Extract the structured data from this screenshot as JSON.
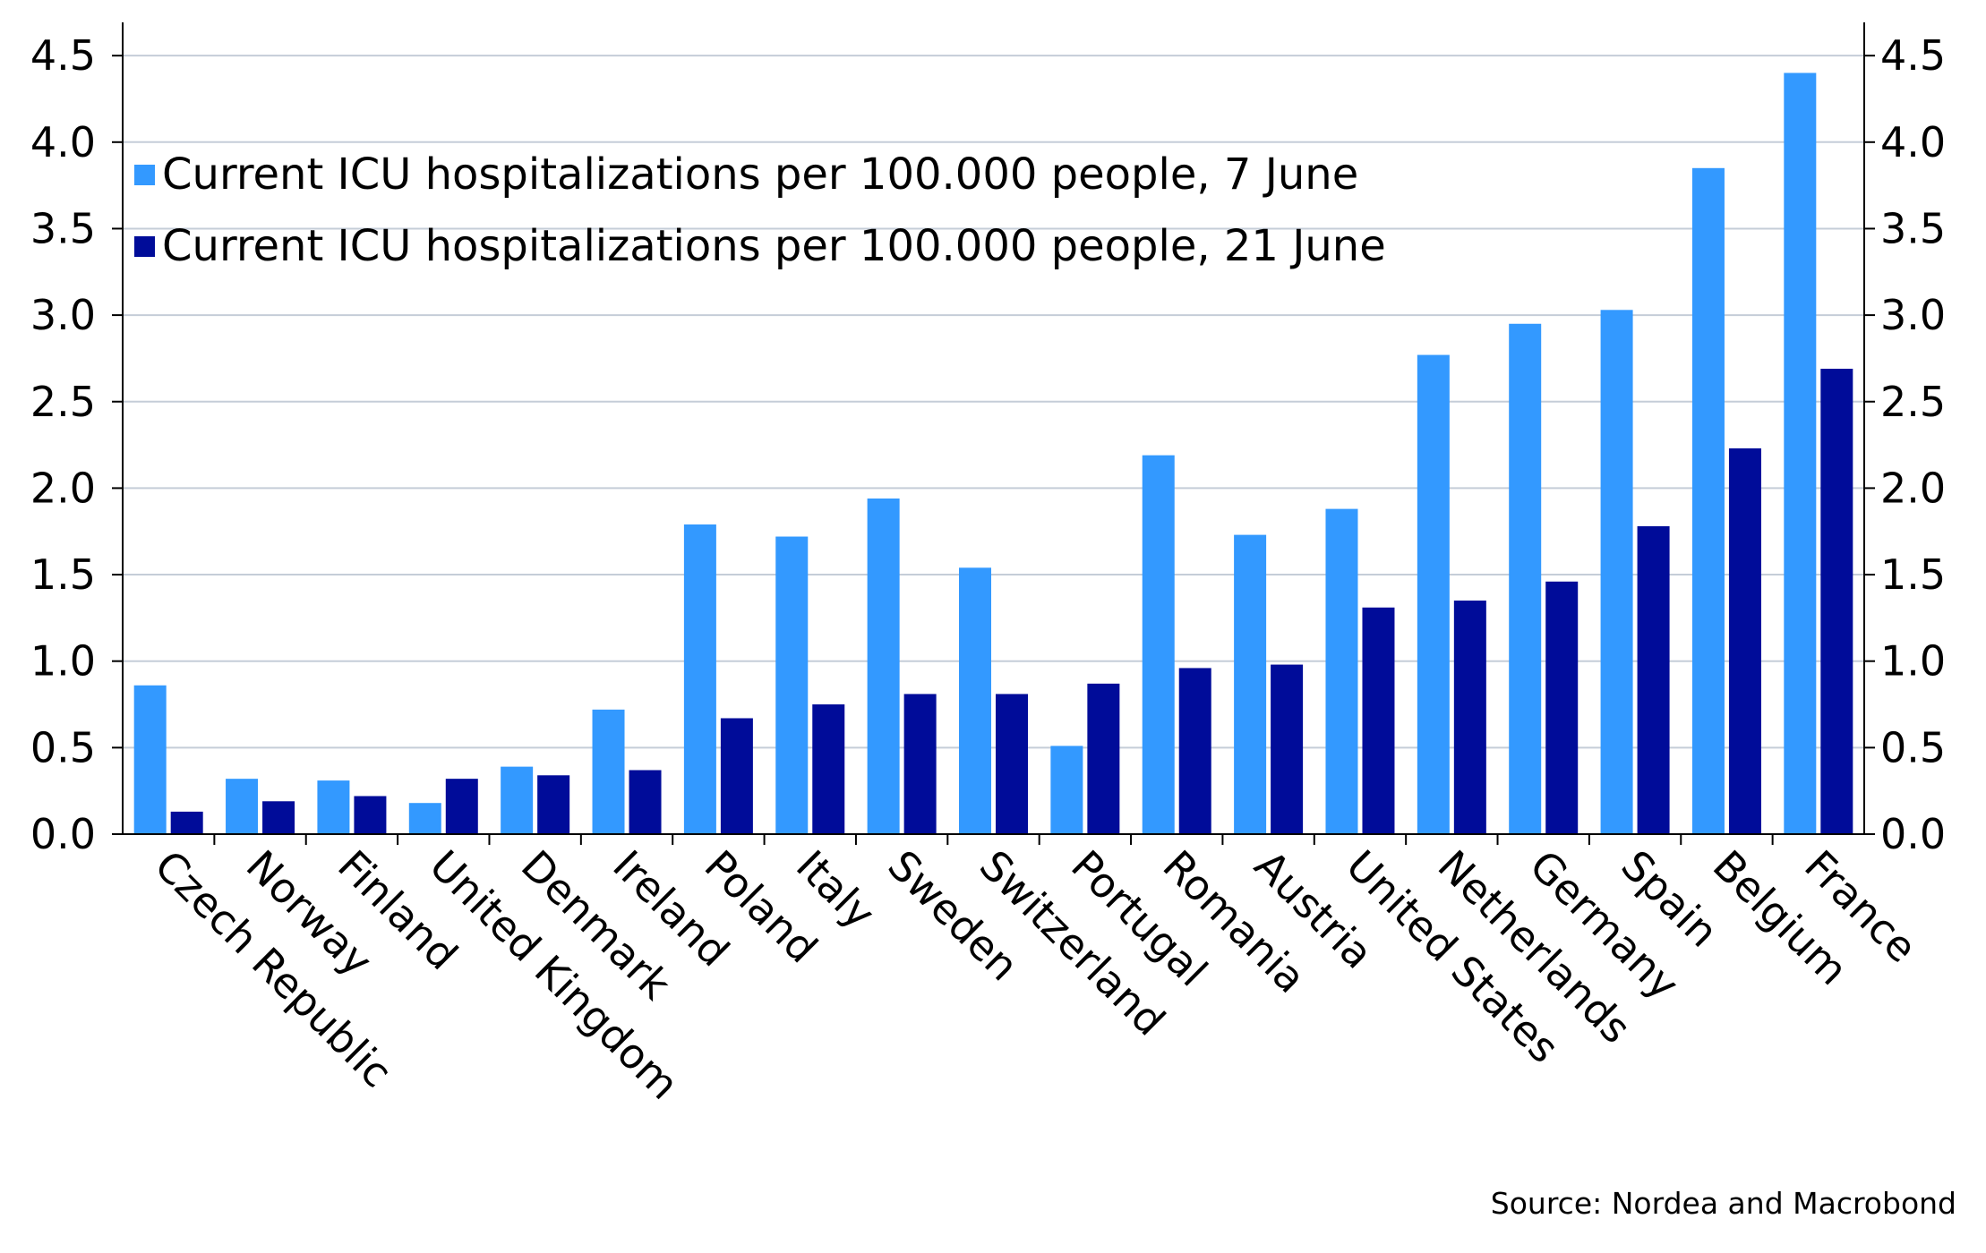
{
  "chart_data": {
    "type": "bar",
    "categories": [
      "Czech Republic",
      "Norway",
      "Finland",
      "United Kingdom",
      "Denmark",
      "Ireland",
      "Poland",
      "Italy",
      "Sweden",
      "Switzerland",
      "Portugal",
      "Romania",
      "Austria",
      "United States",
      "Netherlands",
      "Germany",
      "Spain",
      "Belgium",
      "France"
    ],
    "series": [
      {
        "name": "Current ICU hospitalizations per 100.000 people, 7 June",
        "color": "#3399ff",
        "values": [
          0.86,
          0.32,
          0.31,
          0.18,
          0.39,
          0.72,
          1.79,
          1.72,
          1.94,
          1.54,
          0.51,
          2.19,
          1.73,
          1.88,
          2.77,
          2.95,
          3.03,
          3.85,
          4.4
        ]
      },
      {
        "name": "Current ICU hospitalizations per 100.000 people, 21 June",
        "color": "#000c99",
        "values": [
          0.13,
          0.19,
          0.22,
          0.32,
          0.34,
          0.37,
          0.67,
          0.75,
          0.81,
          0.81,
          0.87,
          0.96,
          0.98,
          1.31,
          1.35,
          1.46,
          1.78,
          2.23,
          2.69
        ]
      }
    ],
    "yticks": [
      "0.0",
      "0.5",
      "1.0",
      "1.5",
      "2.0",
      "2.5",
      "3.0",
      "3.5",
      "4.0",
      "4.5"
    ],
    "ylim": [
      0,
      4.7
    ],
    "dual_y_axis": true,
    "grid": true,
    "legend_position": "top-left",
    "source": "Source: Nordea and Macrobond"
  }
}
